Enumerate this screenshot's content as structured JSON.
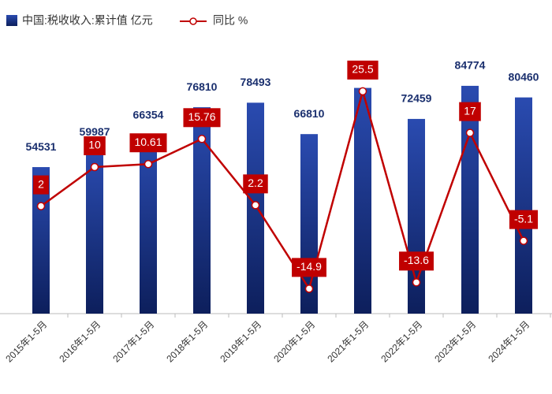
{
  "chart_data": {
    "type": "bar-line",
    "categories": [
      "2015年1-5月",
      "2016年1-5月",
      "2017年1-5月",
      "2018年1-5月",
      "2019年1-5月",
      "2020年1-5月",
      "2021年1-5月",
      "2022年1-5月",
      "2023年1-5月",
      "2024年1-5月"
    ],
    "series": [
      {
        "name": "中国:税收收入:累计值 亿元",
        "type": "bar",
        "color": "#1a3284",
        "values": [
          54531,
          59987,
          66354,
          76810,
          78493,
          66810,
          84000,
          72459,
          84774,
          80460
        ]
      },
      {
        "name": "同比 %",
        "type": "line",
        "axis": "y2",
        "color": "#c00000",
        "values": [
          2,
          10,
          10.61,
          15.76,
          2.2,
          -14.9,
          25.5,
          -13.6,
          17,
          -5.1
        ]
      }
    ],
    "ylim": [
      0,
      100000
    ],
    "y2lim": [
      -20,
      35
    ]
  }
}
